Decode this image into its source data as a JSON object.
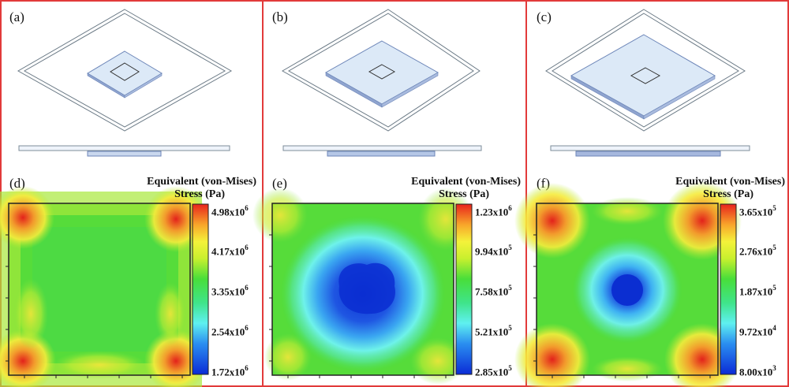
{
  "panels": [
    {
      "label": "(a)"
    },
    {
      "label": "(b)"
    },
    {
      "label": "(c)"
    },
    {
      "label": "(d)"
    },
    {
      "label": "(e)"
    },
    {
      "label": "(f)"
    }
  ],
  "colorbar_title_line1": "Equivalent (von-Mises)",
  "colorbar_title_line2": "Stress (Pa)",
  "colorbars": [
    {
      "ticks": [
        {
          "m": "4.98x10",
          "e": "6"
        },
        {
          "m": "4.17x10",
          "e": "6"
        },
        {
          "m": "3.35x10",
          "e": "6"
        },
        {
          "m": "2.54x10",
          "e": "6"
        },
        {
          "m": "1.72x10",
          "e": "6"
        }
      ]
    },
    {
      "ticks": [
        {
          "m": "1.23x10",
          "e": "6"
        },
        {
          "m": "9.94x10",
          "e": "5"
        },
        {
          "m": "7.58x10",
          "e": "5"
        },
        {
          "m": "5.21x10",
          "e": "5"
        },
        {
          "m": "2.85x10",
          "e": "5"
        }
      ]
    },
    {
      "ticks": [
        {
          "m": "3.65x10",
          "e": "5"
        },
        {
          "m": "2.76x10",
          "e": "5"
        },
        {
          "m": "1.87x10",
          "e": "5"
        },
        {
          "m": "9.72x10",
          "e": "4"
        },
        {
          "m": "8.00x10",
          "e": "3"
        }
      ]
    }
  ],
  "colors": {
    "border": "#e23b3b",
    "platform_fill": "#dce9f7",
    "platform_edge": "#6d86b8"
  }
}
